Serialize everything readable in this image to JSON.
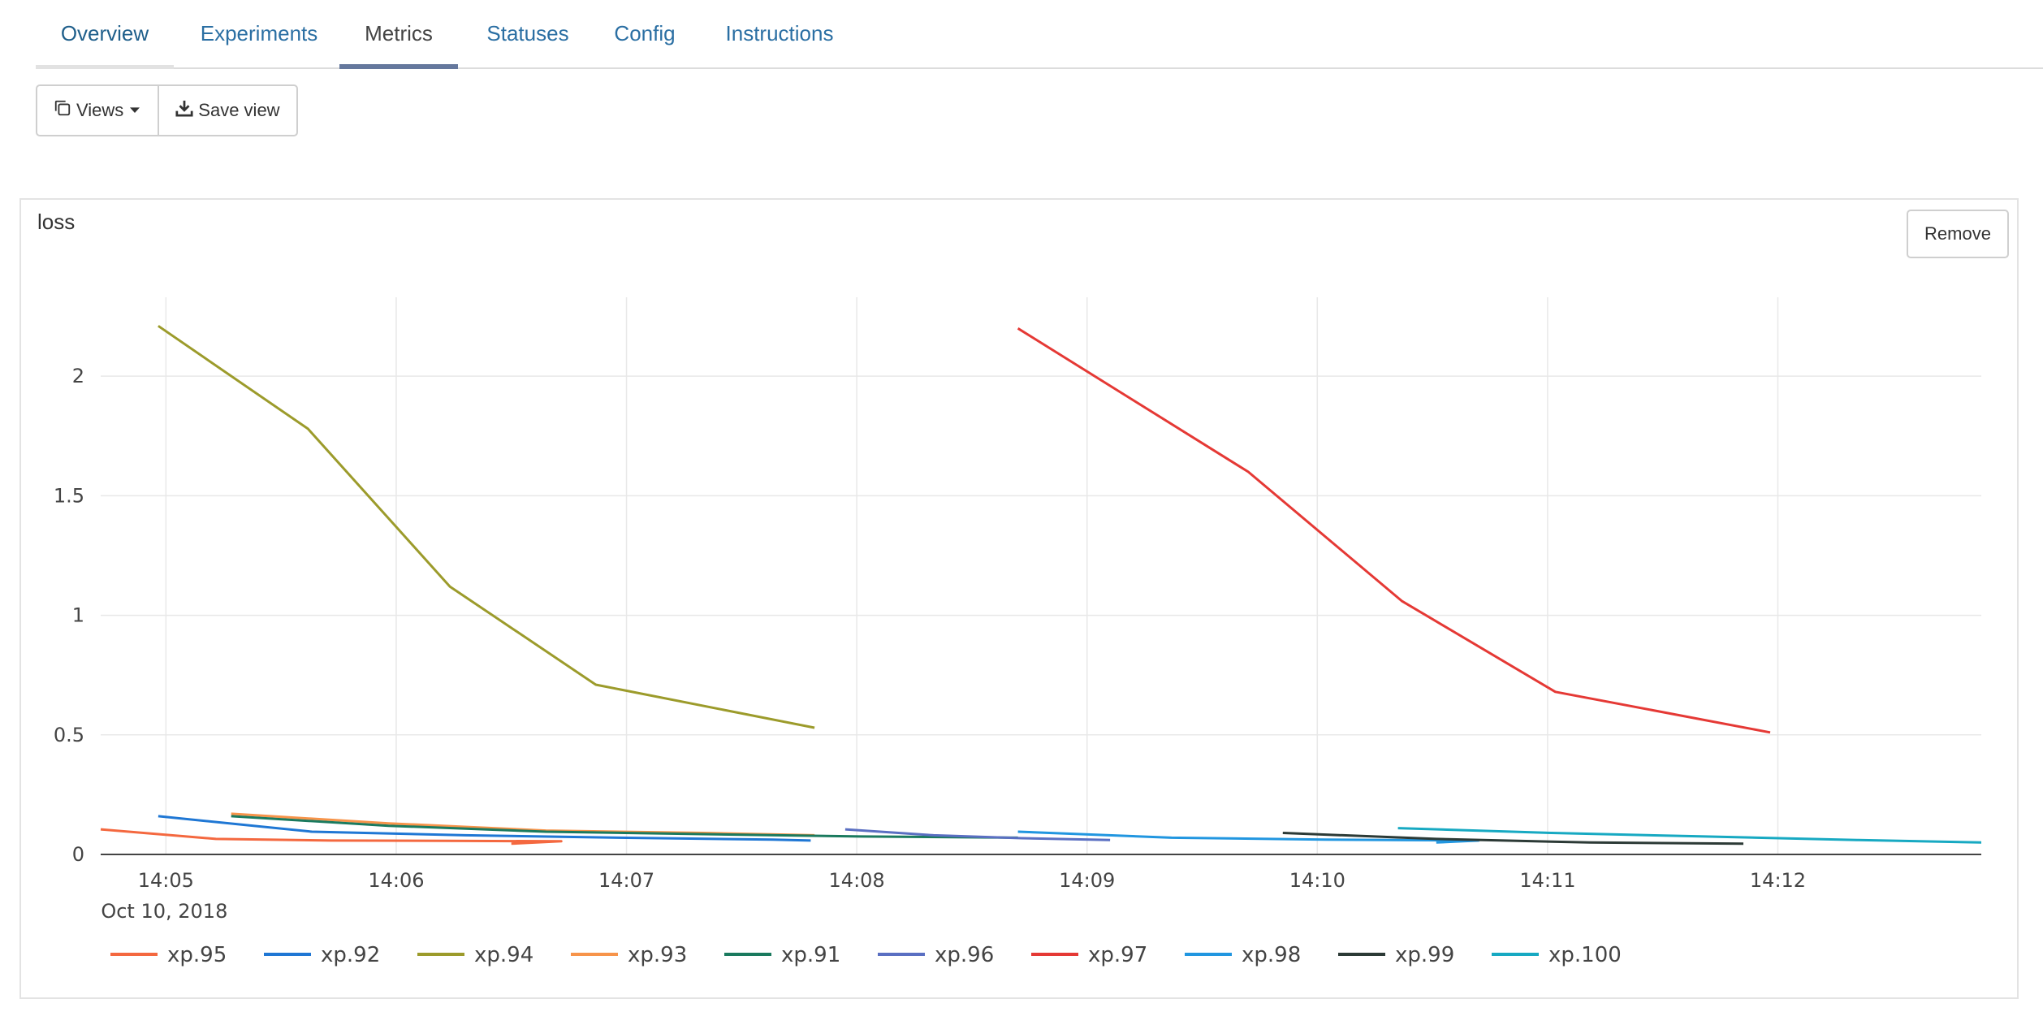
{
  "tabs": [
    {
      "label": "Overview"
    },
    {
      "label": "Experiments"
    },
    {
      "label": "Metrics"
    },
    {
      "label": "Statuses"
    },
    {
      "label": "Config"
    },
    {
      "label": "Instructions"
    }
  ],
  "active_tab": "Metrics",
  "toolbar": {
    "views_label": "Views",
    "save_view_label": "Save view"
  },
  "card": {
    "title": "loss",
    "remove_label": "Remove"
  },
  "chart_data": {
    "type": "line",
    "title": "loss",
    "xlabel": "",
    "ylabel": "",
    "x_axis_type": "time",
    "x_tick_labels": [
      "14:05",
      "14:06",
      "14:07",
      "14:08",
      "14:09",
      "14:10",
      "14:11",
      "14:12"
    ],
    "x_date_label": "Oct 10, 2018",
    "xlim": [
      "14:04:43",
      "14:12:53"
    ],
    "y_ticks": [
      0,
      0.5,
      1,
      1.5,
      2
    ],
    "ylim": [
      0,
      2.33
    ],
    "grid": true,
    "legend_position": "bottom",
    "series": [
      {
        "name": "xp.95",
        "color": "#f4683f",
        "x": [
          "14:04:43",
          "14:05:13",
          "14:05:43",
          "14:06:13",
          "14:06:43",
          "14:06:30"
        ],
        "y": [
          0.105,
          0.065,
          0.058,
          0.057,
          0.055,
          0.045
        ]
      },
      {
        "name": "xp.92",
        "color": "#1f77d4",
        "x": [
          "14:04:58",
          "14:05:38",
          "14:06:18",
          "14:06:58",
          "14:07:38",
          "14:07:48"
        ],
        "y": [
          0.16,
          0.095,
          0.08,
          0.07,
          0.062,
          0.058
        ]
      },
      {
        "name": "xp.94",
        "color": "#9c9b2b",
        "x": [
          "14:04:58",
          "14:05:37",
          "14:06:14",
          "14:06:52",
          "14:07:49"
        ],
        "y": [
          2.21,
          1.78,
          1.12,
          0.71,
          0.53
        ]
      },
      {
        "name": "xp.93",
        "color": "#f7944a",
        "x": [
          "14:05:17",
          "14:05:58",
          "14:06:39",
          "14:07:20",
          "14:07:49"
        ],
        "y": [
          0.17,
          0.13,
          0.1,
          0.09,
          0.08
        ]
      },
      {
        "name": "xp.91",
        "color": "#1a7a5e",
        "x": [
          "14:05:17",
          "14:05:58",
          "14:06:39",
          "14:07:20",
          "14:08:01",
          "14:08:42"
        ],
        "y": [
          0.16,
          0.12,
          0.095,
          0.085,
          0.075,
          0.07
        ]
      },
      {
        "name": "xp.96",
        "color": "#5a6fc2",
        "x": [
          "14:07:57",
          "14:08:20",
          "14:08:43",
          "14:09:06"
        ],
        "y": [
          0.105,
          0.08,
          0.068,
          0.06
        ]
      },
      {
        "name": "xp.97",
        "color": "#e53935",
        "x": [
          "14:08:42",
          "14:09:42",
          "14:10:22",
          "14:11:02",
          "14:11:58"
        ],
        "y": [
          2.2,
          1.6,
          1.06,
          0.68,
          0.51
        ]
      },
      {
        "name": "xp.98",
        "color": "#2196e0",
        "x": [
          "14:08:42",
          "14:09:22",
          "14:10:02",
          "14:10:42",
          "14:10:31"
        ],
        "y": [
          0.095,
          0.07,
          0.062,
          0.058,
          0.05
        ]
      },
      {
        "name": "xp.99",
        "color": "#2c3a36",
        "x": [
          "14:09:51",
          "14:10:31",
          "14:11:11",
          "14:11:51"
        ],
        "y": [
          0.09,
          0.065,
          0.05,
          0.045
        ]
      },
      {
        "name": "xp.100",
        "color": "#17a9c2",
        "x": [
          "14:10:21",
          "14:11:01",
          "14:11:41",
          "14:12:21",
          "14:12:53"
        ],
        "y": [
          0.11,
          0.09,
          0.075,
          0.06,
          0.05
        ]
      }
    ]
  }
}
